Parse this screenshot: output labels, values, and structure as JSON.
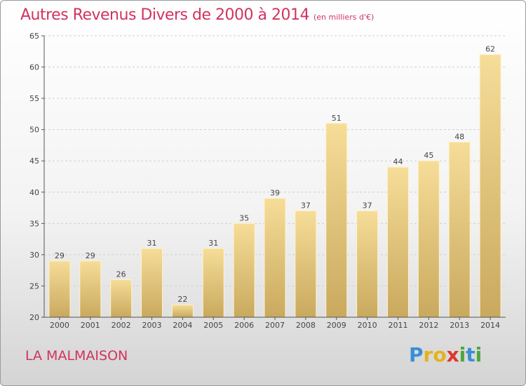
{
  "chart_data": {
    "type": "bar",
    "title": "Autres Revenus Divers de 2000 à 2014",
    "unit_note": "(en milliers d'€)",
    "categories": [
      "2000",
      "2001",
      "2002",
      "2003",
      "2004",
      "2005",
      "2006",
      "2007",
      "2008",
      "2009",
      "2010",
      "2011",
      "2012",
      "2013",
      "2014"
    ],
    "values": [
      29,
      29,
      26,
      31,
      22,
      31,
      35,
      39,
      37,
      51,
      37,
      44,
      45,
      48,
      62
    ],
    "ylim": [
      20,
      65
    ],
    "yticks": [
      20,
      25,
      30,
      35,
      40,
      45,
      50,
      55,
      60,
      65
    ],
    "grid": true,
    "bar_color": "#e8c979",
    "bar_color_light": "#f6dd98",
    "bar_color_dark": "#c9a95e"
  },
  "footer": {
    "commune": "LA MALMAISON",
    "logo_letters": [
      {
        "ch": "P",
        "color": "#3a8fd6"
      },
      {
        "ch": "r",
        "color": "#e4b21f"
      },
      {
        "ch": "o",
        "color": "#e4b21f"
      },
      {
        "ch": "x",
        "color": "#e0342b"
      },
      {
        "ch": "i",
        "color": "#4aa83a"
      },
      {
        "ch": "t",
        "color": "#3a8fd6"
      },
      {
        "ch": "i",
        "color": "#4aa83a"
      }
    ]
  },
  "colors": {
    "title": "#d2335f",
    "axis": "#555555",
    "grid": "#cfcfcf"
  }
}
